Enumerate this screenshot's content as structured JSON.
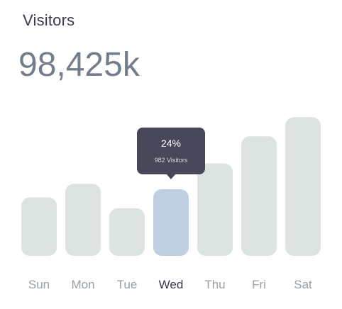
{
  "header": {
    "title": "Visitors",
    "total": "98,425k"
  },
  "tooltip": {
    "percent": "24%",
    "visitors": "982 Visitors"
  },
  "colors": {
    "bar": "#dce3e1",
    "highlight_bar": "#c0cfe1",
    "label": "#9a9fa8",
    "highlight_label": "#3b3950",
    "tooltip_bg": "#48475a"
  },
  "chart_data": {
    "type": "bar",
    "categories": [
      "Sun",
      "Mon",
      "Tue",
      "Wed",
      "Thu",
      "Fri",
      "Sat"
    ],
    "values": [
      43,
      53,
      35,
      49,
      68,
      88,
      102
    ],
    "highlighted": "Wed",
    "ylim": [
      0,
      110
    ],
    "grid": false
  }
}
